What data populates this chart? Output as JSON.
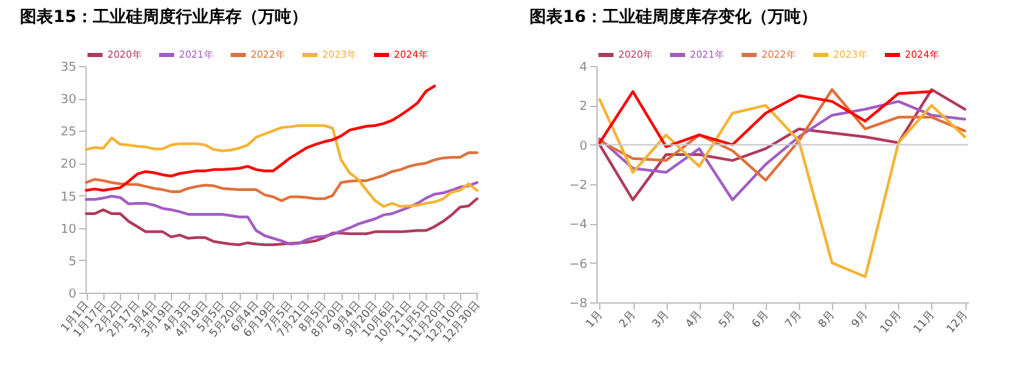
{
  "chart_data": [
    {
      "type": "line",
      "title": "图表15：工业硅周度行业库存（万吨）",
      "legend": "top",
      "categories": [
        "1月1日",
        null,
        "1月17日",
        null,
        "2月2日",
        null,
        "2月17日",
        null,
        "3月4日",
        null,
        "3月19日",
        null,
        "4月3日",
        null,
        "4月19日",
        null,
        "5月5日",
        null,
        "5月20日",
        null,
        "6月4日",
        null,
        "6月19日",
        null,
        "7月5日",
        null,
        "7月21日",
        null,
        "8月5日",
        null,
        "8月20日",
        null,
        "9月4日",
        null,
        "9月20日",
        null,
        "10月6日",
        null,
        "10月21日",
        null,
        "11月5日",
        null,
        "11月20日",
        null,
        "12月10日",
        null,
        "12月30日"
      ],
      "ylim": [
        0,
        35
      ],
      "yticks": [
        0,
        5,
        10,
        15,
        20,
        25,
        30,
        35
      ],
      "series": [
        {
          "name": "2020年",
          "color": "#b03a5b",
          "values": [
            12.2,
            12.2,
            12.8,
            12.2,
            12.2,
            11.0,
            10.2,
            9.4,
            9.4,
            9.4,
            8.6,
            8.9,
            8.4,
            8.5,
            8.5,
            7.9,
            7.7,
            7.5,
            7.4,
            7.7,
            7.5,
            7.4,
            7.4,
            7.5,
            7.6,
            7.7,
            7.8,
            8.0,
            8.5,
            9.2,
            9.2,
            9.1,
            9.1,
            9.1,
            9.4,
            9.4,
            9.4,
            9.4,
            9.5,
            9.6,
            9.6,
            10.2,
            11.0,
            12.0,
            13.2,
            13.4,
            14.5
          ]
        },
        {
          "name": "2021年",
          "color": "#a25cc4",
          "values": [
            14.4,
            14.4,
            14.6,
            14.9,
            14.7,
            13.7,
            13.8,
            13.8,
            13.5,
            13.0,
            12.8,
            12.5,
            12.1,
            12.1,
            12.1,
            12.1,
            12.1,
            11.9,
            11.7,
            11.7,
            9.6,
            8.8,
            8.4,
            8.0,
            7.5,
            7.6,
            8.2,
            8.6,
            8.7,
            9.0,
            9.5,
            10.0,
            10.6,
            11.0,
            11.4,
            12.0,
            12.2,
            12.7,
            13.2,
            13.8,
            14.6,
            15.2,
            15.4,
            15.8,
            16.3,
            16.5,
            17.0
          ]
        },
        {
          "name": "2022年",
          "color": "#e0703a",
          "values": [
            17.0,
            17.5,
            17.3,
            17.0,
            16.8,
            16.7,
            16.7,
            16.4,
            16.1,
            15.9,
            15.6,
            15.6,
            16.1,
            16.4,
            16.6,
            16.5,
            16.1,
            16.0,
            15.9,
            15.9,
            15.9,
            15.1,
            14.8,
            14.2,
            14.8,
            14.8,
            14.7,
            14.5,
            14.5,
            15.0,
            17.0,
            17.2,
            17.3,
            17.3,
            17.7,
            18.1,
            18.7,
            19.0,
            19.5,
            19.8,
            20.0,
            20.5,
            20.8,
            20.9,
            20.9,
            21.6,
            21.6
          ]
        },
        {
          "name": "2023年",
          "color": "#f5b335",
          "values": [
            22.1,
            22.4,
            22.3,
            23.9,
            22.9,
            22.8,
            22.6,
            22.5,
            22.2,
            22.2,
            22.8,
            23.0,
            23.0,
            23.0,
            22.8,
            22.1,
            21.9,
            22.0,
            22.3,
            22.8,
            24.0,
            24.5,
            25.0,
            25.5,
            25.6,
            25.8,
            25.8,
            25.8,
            25.8,
            25.4,
            20.5,
            18.5,
            17.5,
            15.8,
            14.2,
            13.3,
            13.8,
            13.3,
            13.4,
            13.5,
            13.8,
            14.0,
            14.5,
            15.5,
            15.8,
            16.8,
            15.8
          ]
        },
        {
          "name": "2024年",
          "color": "#ff0000",
          "values": [
            15.8,
            16.0,
            15.8,
            16.0,
            16.2,
            17.2,
            18.3,
            18.7,
            18.5,
            18.2,
            18.0,
            18.4,
            18.6,
            18.8,
            18.8,
            19.0,
            19.0,
            19.1,
            19.2,
            19.5,
            19.0,
            18.8,
            18.8,
            19.8,
            20.8,
            21.6,
            22.4,
            22.9,
            23.3,
            23.6,
            24.2,
            25.1,
            25.4,
            25.7,
            25.8,
            26.1,
            26.6,
            27.4,
            28.3,
            29.3,
            31.1,
            31.9,
            null,
            null,
            null,
            null,
            null
          ]
        }
      ]
    },
    {
      "type": "line",
      "title": "图表16：工业硅周度库存变化（万吨）",
      "legend": "top",
      "categories": [
        "1月",
        "2月",
        "3月",
        "4月",
        "5月",
        "6月",
        "7月",
        "8月",
        "9月",
        "10月",
        "11月",
        "12月"
      ],
      "ylim": [
        -8,
        4
      ],
      "yticks": [
        -8,
        -6,
        -4,
        -2,
        0,
        2,
        4
      ],
      "ref_lines": [
        {
          "axis": "y",
          "value": 0
        }
      ],
      "series": [
        {
          "name": "2020年",
          "color": "#b03a5b",
          "values": [
            0.0,
            -2.8,
            -0.5,
            -0.5,
            -0.8,
            -0.2,
            0.8,
            0.6,
            0.4,
            0.1,
            2.8,
            1.8
          ]
        },
        {
          "name": "2021年",
          "color": "#a25cc4",
          "values": [
            0.3,
            -1.2,
            -1.4,
            -0.2,
            -2.8,
            -1.0,
            0.4,
            1.5,
            1.8,
            2.2,
            1.5,
            1.3
          ]
        },
        {
          "name": "2022年",
          "color": "#e0703a",
          "values": [
            0.2,
            -0.7,
            -0.8,
            0.5,
            -0.3,
            -1.8,
            0.2,
            2.8,
            0.8,
            1.4,
            1.4,
            0.7
          ]
        },
        {
          "name": "2023年",
          "color": "#f5b335",
          "values": [
            2.3,
            -1.4,
            0.5,
            -1.1,
            1.6,
            2.0,
            0.2,
            -6.0,
            -6.7,
            0.1,
            2.0,
            0.4
          ]
        },
        {
          "name": "2024年",
          "color": "#ff0000",
          "values": [
            0.1,
            2.7,
            -0.1,
            0.5,
            0.0,
            1.6,
            2.5,
            2.2,
            1.2,
            2.6,
            2.7,
            null
          ]
        }
      ]
    }
  ]
}
